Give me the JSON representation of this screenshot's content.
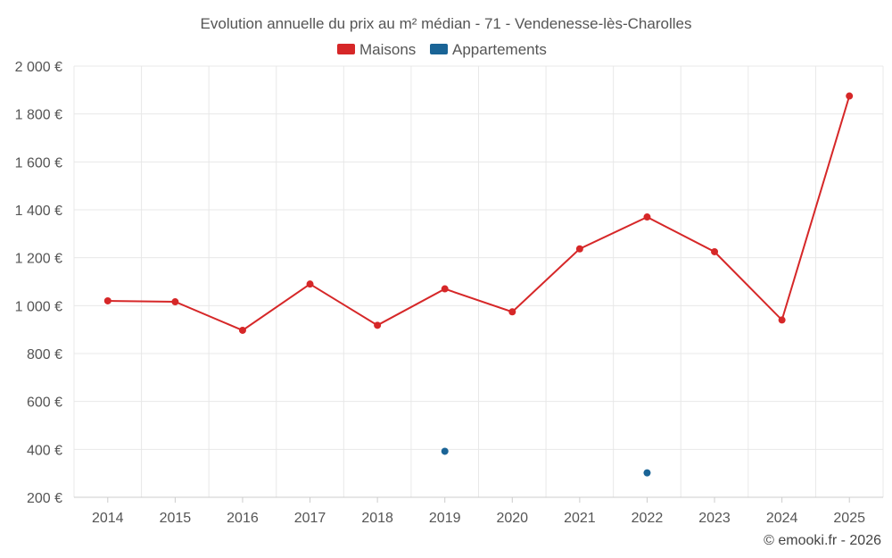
{
  "chart_data": {
    "type": "line",
    "title": "Evolution annuelle du prix au m² médian - 71 - Vendenesse-lès-Charolles",
    "xlabel": "",
    "ylabel": "",
    "categories": [
      "2014",
      "2015",
      "2016",
      "2017",
      "2018",
      "2019",
      "2020",
      "2021",
      "2022",
      "2023",
      "2024",
      "2025"
    ],
    "ylim": [
      200,
      2000
    ],
    "yticks": [
      200,
      400,
      600,
      800,
      1000,
      1200,
      1400,
      1600,
      1800,
      2000
    ],
    "ytick_labels": [
      "200 €",
      "400 €",
      "600 €",
      "800 €",
      "1 000 €",
      "1 200 €",
      "1 400 €",
      "1 600 €",
      "1 800 €",
      "2 000 €"
    ],
    "grid": true,
    "legend_position": "top-center",
    "series": [
      {
        "name": "Maisons",
        "color": "#d62728",
        "values": [
          1020,
          1016,
          897,
          1090,
          918,
          1070,
          974,
          1237,
          1370,
          1225,
          940,
          1875
        ]
      },
      {
        "name": "Appartements",
        "color": "#1a6496",
        "values": [
          null,
          null,
          null,
          null,
          null,
          392,
          null,
          null,
          302,
          null,
          null,
          null
        ]
      }
    ]
  },
  "credit": "© emooki.fr - 2026"
}
